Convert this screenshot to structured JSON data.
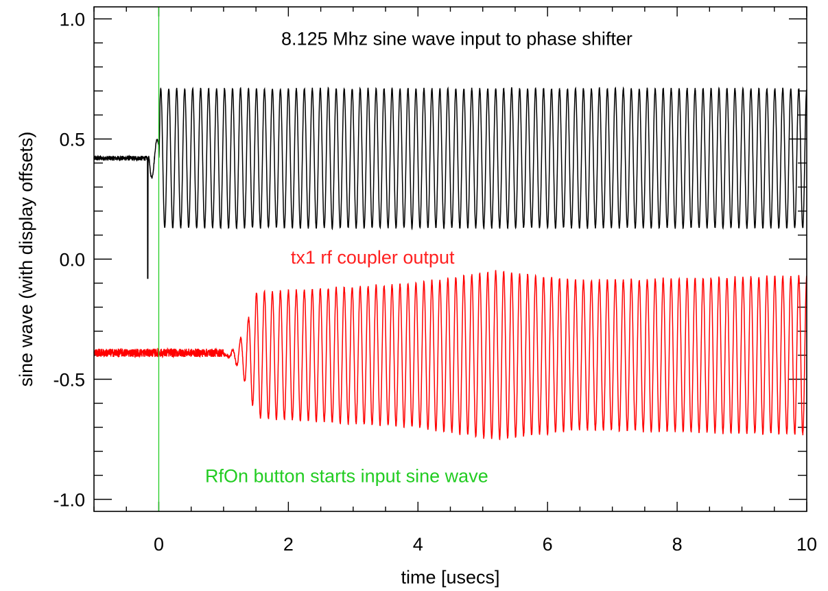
{
  "chart_data": {
    "type": "line",
    "title": "",
    "xlabel": "time [usecs]",
    "ylabel": "sine wave (with display offsets)",
    "xlim": [
      -1,
      10
    ],
    "ylim": [
      -1.05,
      1.05
    ],
    "xticks": [
      0,
      2,
      4,
      6,
      8,
      10
    ],
    "xtick_labels": [
      "0",
      "2",
      "4",
      "6",
      "8",
      "10"
    ],
    "yticks": [
      -1.0,
      -0.5,
      0.0,
      0.5,
      1.0
    ],
    "ytick_labels": [
      "-1.0",
      "-0.5",
      "0.0",
      "0.5",
      "1.0"
    ],
    "grid": false,
    "frequency_mhz": 8.125,
    "annotations": [
      {
        "text": "8.125 Mhz sine wave input to phase shifter",
        "x": 4.6,
        "y": 0.92,
        "color": "#000000"
      },
      {
        "text": "tx1 rf coupler output",
        "x": 3.3,
        "y": 0.01,
        "color": "#ff2020"
      },
      {
        "text": "RfOn button starts input sine wave",
        "x": 2.9,
        "y": -0.9,
        "color": "#22cc22"
      }
    ],
    "markers": [
      {
        "type": "vline",
        "x": 0,
        "color": "#22cc22"
      }
    ],
    "series": [
      {
        "color": "#000000",
        "description_points": {
          "baseline_t": [
            -1.0,
            -0.15
          ],
          "baseline_y": 0.42,
          "spike": {
            "t": -0.17,
            "y_min": -0.08
          },
          "wave_start_t": 0.0,
          "wave_center": 0.42,
          "wave_amplitude": 0.29
        }
      },
      {
        "color": "#ff0000",
        "description_points": {
          "baseline_t": [
            -1.0,
            1.0
          ],
          "baseline_y": -0.39,
          "wave_start_t": 1.0,
          "ramp_end_t": 1.5,
          "wave_center": -0.4,
          "amplitude_points": [
            [
              1.5,
              0.26
            ],
            [
              4.0,
              0.3
            ],
            [
              5.2,
              0.35
            ],
            [
              6.5,
              0.31
            ],
            [
              10.0,
              0.33
            ]
          ]
        }
      }
    ]
  }
}
